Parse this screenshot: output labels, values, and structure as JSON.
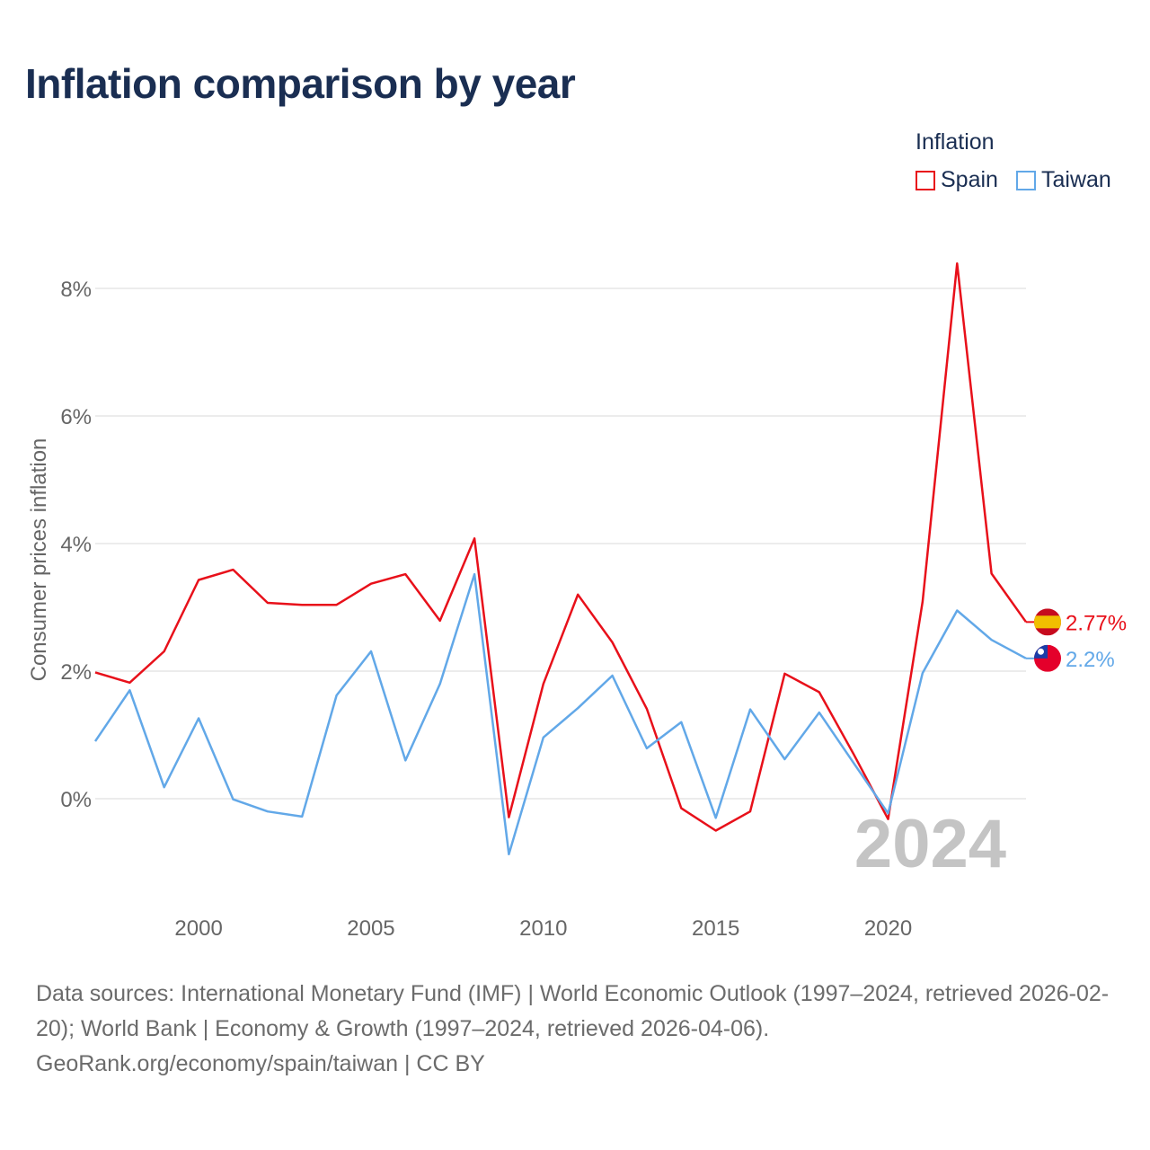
{
  "title": "Inflation comparison by year",
  "legend": {
    "title": "Inflation",
    "items": [
      {
        "label": "Spain",
        "color": "#e8101a"
      },
      {
        "label": "Taiwan",
        "color": "#62a8e8"
      }
    ]
  },
  "footer": {
    "line1": "Data sources: International Monetary Fund (IMF) | World Economic Outlook (1997–2024, retrieved 2026-02-20); World Bank | Economy & Growth (1997–2024, retrieved 2026-04-06).",
    "line2": "GeoRank.org/economy/spain/taiwan | CC BY"
  },
  "chart_data": {
    "type": "line",
    "title": "Inflation comparison by year",
    "xlabel": "",
    "ylabel": "Consumer prices inflation",
    "x": [
      1997,
      1998,
      1999,
      2000,
      2001,
      2002,
      2003,
      2004,
      2005,
      2006,
      2007,
      2008,
      2009,
      2010,
      2011,
      2012,
      2013,
      2014,
      2015,
      2016,
      2017,
      2018,
      2019,
      2020,
      2021,
      2022,
      2023,
      2024
    ],
    "xlim": [
      1997,
      2024
    ],
    "ylim": [
      -1.7,
      9.2
    ],
    "x_ticks": [
      "2000",
      "2005",
      "2010",
      "2015",
      "2020"
    ],
    "y_ticks": [
      "0%",
      "2%",
      "4%",
      "6%",
      "8%"
    ],
    "year_label": "2024",
    "series": [
      {
        "name": "Spain",
        "color": "#e8101a",
        "values": [
          1.98,
          1.82,
          2.31,
          3.43,
          3.59,
          3.07,
          3.04,
          3.04,
          3.37,
          3.52,
          2.79,
          4.08,
          -0.29,
          1.8,
          3.2,
          2.45,
          1.41,
          -0.15,
          -0.5,
          -0.2,
          1.96,
          1.67,
          0.7,
          -0.32,
          3.09,
          8.39,
          3.53,
          2.77
        ],
        "end_label": "2.77%"
      },
      {
        "name": "Taiwan",
        "color": "#62a8e8",
        "values": [
          0.9,
          1.7,
          0.18,
          1.26,
          -0.01,
          -0.2,
          -0.28,
          1.62,
          2.31,
          0.6,
          1.8,
          3.52,
          -0.87,
          0.96,
          1.42,
          1.93,
          0.79,
          1.2,
          -0.3,
          1.4,
          0.62,
          1.35,
          0.56,
          -0.23,
          1.97,
          2.95,
          2.49,
          2.2
        ],
        "end_label": "2.2%"
      }
    ]
  }
}
